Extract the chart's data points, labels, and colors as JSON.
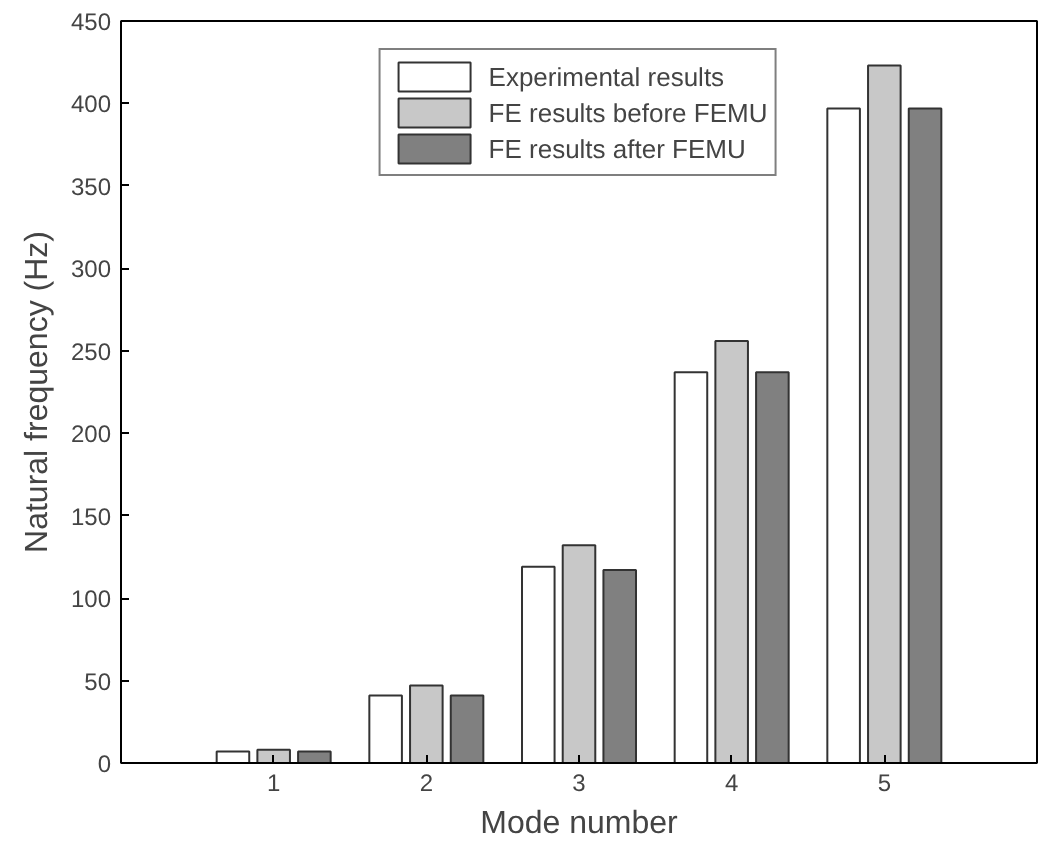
{
  "chart_data": {
    "type": "bar",
    "xlabel": "Mode number",
    "ylabel": "Natural frequency (Hz)",
    "x": [
      1,
      2,
      3,
      4,
      5
    ],
    "xlim": [
      0,
      6
    ],
    "xticks": [
      1,
      2,
      3,
      4,
      5
    ],
    "ylim": [
      0,
      450
    ],
    "yticks": [
      0,
      50,
      100,
      150,
      200,
      250,
      300,
      350,
      400,
      450
    ],
    "series": [
      {
        "name": "Experimental results",
        "color": "#ffffff",
        "values": [
          7,
          41,
          119,
          237,
          397
        ]
      },
      {
        "name": "FE results before FEMU",
        "color": "#c8c8c8",
        "values": [
          8,
          47,
          132,
          256,
          423
        ]
      },
      {
        "name": "FE results after FEMU",
        "color": "#808080",
        "values": [
          7,
          41,
          117,
          237,
          397
        ]
      }
    ],
    "legend": "top",
    "grid": false
  }
}
